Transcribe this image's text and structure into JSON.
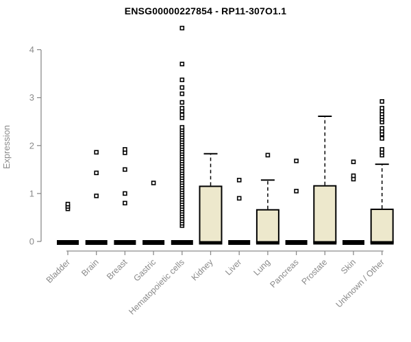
{
  "chart_data": {
    "type": "boxplot",
    "title": "ENSG00000227854 - RP11-307O1.1",
    "ylabel": "Expression",
    "xlabel": "",
    "ylim": [
      0,
      4
    ],
    "yticks": [
      0,
      1,
      2,
      3,
      4
    ],
    "grid": false,
    "colors": {
      "box_fill": "#EDE8CC",
      "box_stroke": "#000000",
      "axis": "#8A8A8A",
      "tick_text": "#8A8A8A",
      "title_text": "#000000"
    },
    "categories": [
      {
        "label": "Bladder",
        "q1": 0,
        "median": 0,
        "q3": 0,
        "whisker_low": 0,
        "whisker_high": 0,
        "outliers": [
          0.68,
          0.73,
          0.78
        ]
      },
      {
        "label": "Brain",
        "q1": 0,
        "median": 0,
        "q3": 0,
        "whisker_low": 0,
        "whisker_high": 0,
        "outliers": [
          0.95,
          1.43,
          1.86
        ]
      },
      {
        "label": "Breast",
        "q1": 0,
        "median": 0,
        "q3": 0,
        "whisker_low": 0,
        "whisker_high": 0,
        "outliers": [
          0.8,
          1.0,
          1.5,
          1.85,
          1.92
        ]
      },
      {
        "label": "Gastric",
        "q1": 0,
        "median": 0,
        "q3": 0,
        "whisker_low": 0,
        "whisker_high": 0,
        "outliers": [
          1.22
        ]
      },
      {
        "label": "Hematopoietic cells",
        "q1": 0,
        "median": 0,
        "q3": 0,
        "whisker_low": 0,
        "whisker_high": 0,
        "outliers": [
          0.33,
          0.38,
          0.43,
          0.48,
          0.53,
          0.58,
          0.63,
          0.68,
          0.73,
          0.78,
          0.83,
          0.88,
          0.93,
          0.98,
          1.03,
          1.08,
          1.13,
          1.18,
          1.23,
          1.28,
          1.33,
          1.38,
          1.43,
          1.48,
          1.53,
          1.58,
          1.63,
          1.68,
          1.73,
          1.78,
          1.83,
          1.88,
          1.93,
          1.98,
          2.03,
          2.08,
          2.13,
          2.18,
          2.23,
          2.28,
          2.33,
          2.38,
          2.58,
          2.64,
          2.72,
          2.78,
          2.9,
          3.08,
          3.21,
          3.37,
          3.7,
          4.45
        ]
      },
      {
        "label": "Kidney",
        "q1": 0,
        "median": 0,
        "q3": 1.15,
        "whisker_low": 0,
        "whisker_high": 1.83,
        "outliers": []
      },
      {
        "label": "Liver",
        "q1": 0,
        "median": 0,
        "q3": 0,
        "whisker_low": 0,
        "whisker_high": 0,
        "outliers": [
          0.9,
          1.28
        ]
      },
      {
        "label": "Lung",
        "q1": 0,
        "median": 0,
        "q3": 0.66,
        "whisker_low": 0,
        "whisker_high": 1.28,
        "outliers": [
          1.8
        ]
      },
      {
        "label": "Pancreas",
        "q1": 0,
        "median": 0,
        "q3": 0,
        "whisker_low": 0,
        "whisker_high": 0,
        "outliers": [
          1.05,
          1.68
        ]
      },
      {
        "label": "Prostate",
        "q1": 0,
        "median": 0,
        "q3": 1.16,
        "whisker_low": 0,
        "whisker_high": 2.61,
        "outliers": []
      },
      {
        "label": "Skin",
        "q1": 0,
        "median": 0,
        "q3": 0,
        "whisker_low": 0,
        "whisker_high": 0,
        "outliers": [
          1.3,
          1.37,
          1.66
        ]
      },
      {
        "label": "Unknown / Other",
        "q1": 0,
        "median": 0,
        "q3": 0.67,
        "whisker_low": 0,
        "whisker_high": 1.61,
        "outliers": [
          1.8,
          1.86,
          1.92,
          2.15,
          2.24,
          2.3,
          2.36,
          2.49,
          2.55,
          2.6,
          2.66,
          2.72,
          2.78,
          2.92
        ]
      }
    ]
  }
}
